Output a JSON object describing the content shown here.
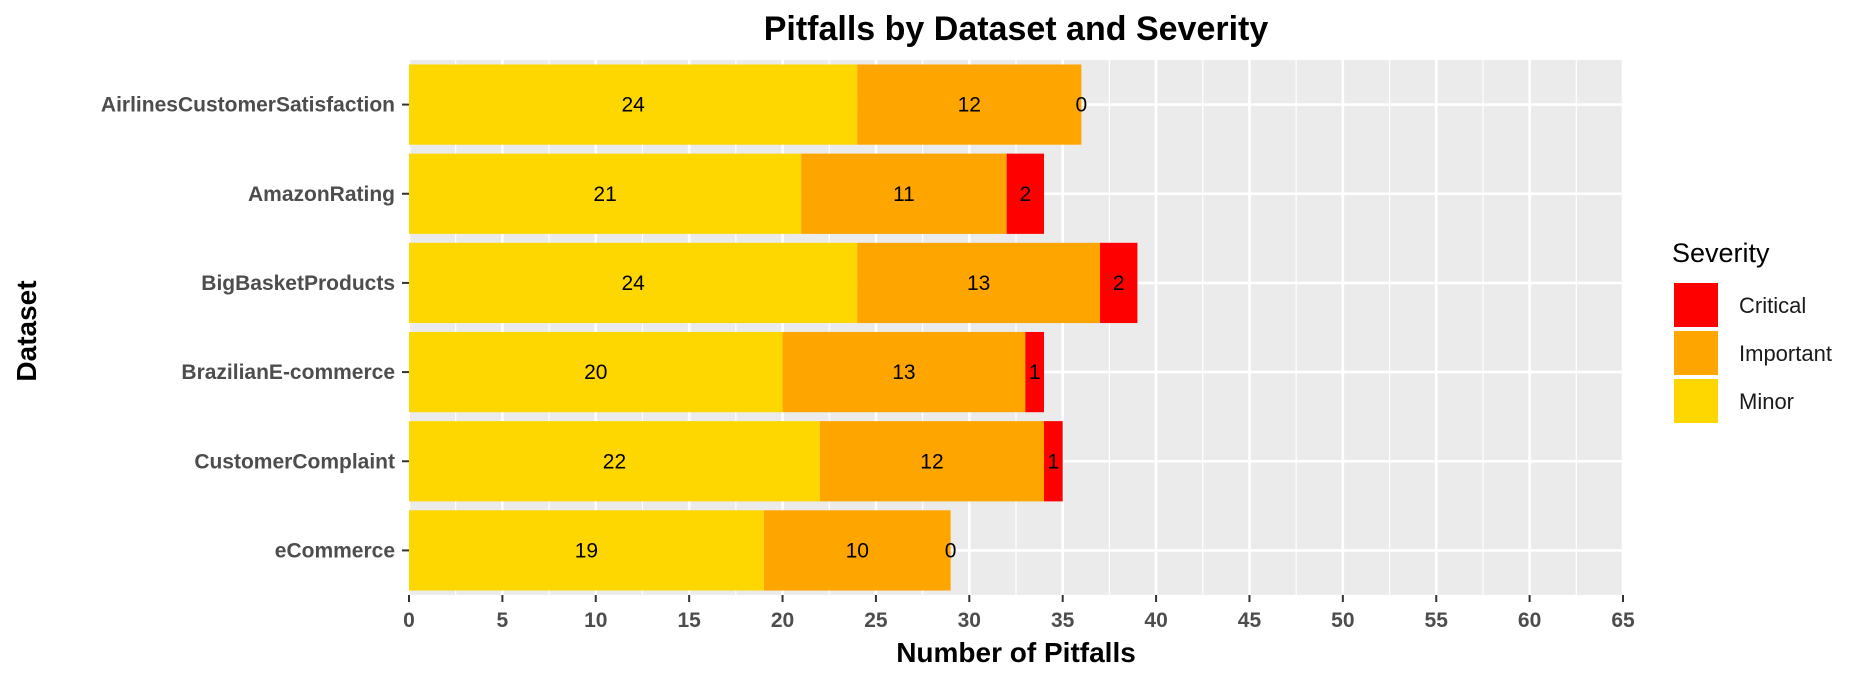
{
  "chart_data": {
    "type": "bar",
    "orientation": "horizontal",
    "stacked": true,
    "title": "Pitfalls by Dataset and Severity",
    "xlabel": "Number of Pitfalls",
    "ylabel": "Dataset",
    "xlim": [
      0,
      65
    ],
    "x_ticks": [
      0,
      5,
      10,
      15,
      20,
      25,
      30,
      35,
      40,
      45,
      50,
      55,
      60,
      65
    ],
    "grid": true,
    "legend_placement": "right",
    "legend_title": "Severity",
    "categories": [
      "AirlinesCustomerSatisfaction",
      "AmazonRating",
      "BigBasketProducts",
      "BrazilianE-commerce",
      "CustomerComplaint",
      "eCommerce"
    ],
    "series": [
      {
        "name": "Minor",
        "color": "#FFD700",
        "values": [
          24,
          21,
          24,
          20,
          22,
          19
        ]
      },
      {
        "name": "Important",
        "color": "#FFA500",
        "values": [
          12,
          11,
          13,
          13,
          12,
          10
        ]
      },
      {
        "name": "Critical",
        "color": "#FF0000",
        "values": [
          0,
          2,
          2,
          1,
          1,
          0
        ]
      }
    ],
    "legend_order": [
      "Critical",
      "Important",
      "Minor"
    ],
    "panel_background": "#EBEBEB",
    "grid_color": "#FFFFFF"
  }
}
